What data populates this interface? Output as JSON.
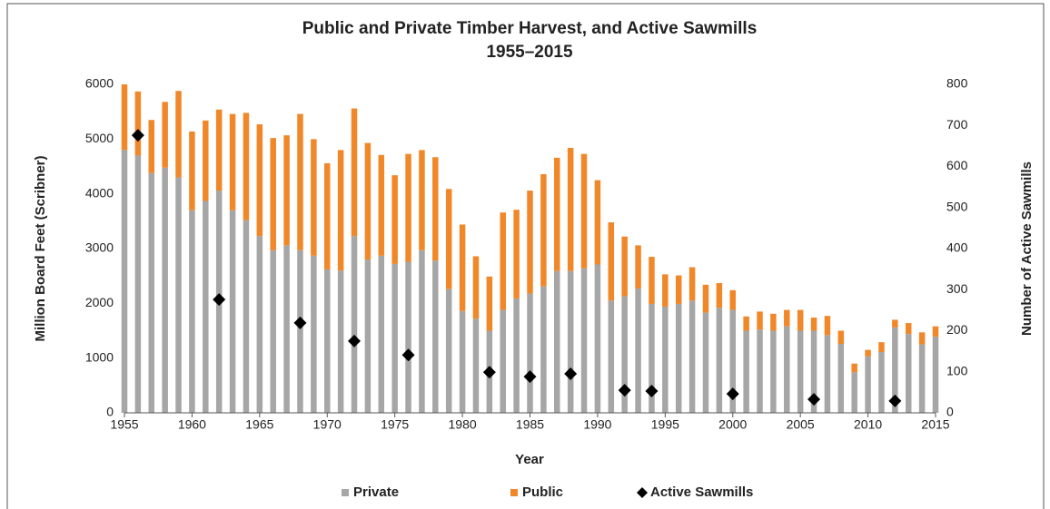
{
  "chart_data": {
    "type": "bar",
    "stacked": true,
    "title": "Public and Private Timber Harvest, and Active Sawmills",
    "subtitle": "1955–2015",
    "x_label": "Year",
    "y_label": "Million Board Feet (Scribner)",
    "y2_label": "Number of Active Sawmills",
    "x": [
      1955,
      1956,
      1957,
      1958,
      1959,
      1960,
      1961,
      1962,
      1963,
      1964,
      1965,
      1966,
      1967,
      1968,
      1969,
      1970,
      1971,
      1972,
      1973,
      1974,
      1975,
      1976,
      1977,
      1978,
      1979,
      1980,
      1981,
      1982,
      1983,
      1984,
      1985,
      1986,
      1987,
      1988,
      1989,
      1990,
      1991,
      1992,
      1993,
      1994,
      1995,
      1996,
      1997,
      1998,
      1999,
      2000,
      2001,
      2002,
      2003,
      2004,
      2005,
      2006,
      2007,
      2008,
      2009,
      2010,
      2011,
      2012,
      2013,
      2014,
      2015
    ],
    "series": [
      {
        "name": "Private",
        "type": "bar",
        "color": "#a6a6a6",
        "values": [
          4800,
          4700,
          4380,
          4480,
          4300,
          3700,
          3870,
          4060,
          3700,
          3520,
          3230,
          2970,
          3060,
          2970,
          2870,
          2620,
          2600,
          3230,
          2800,
          2870,
          2720,
          2760,
          2970,
          2780,
          2260,
          1860,
          1720,
          1500,
          1880,
          2090,
          2180,
          2310,
          2590,
          2590,
          2640,
          2710,
          2050,
          2130,
          2270,
          1990,
          1940,
          1990,
          2050,
          1830,
          1920,
          1880,
          1500,
          1520,
          1500,
          1580,
          1500,
          1500,
          1420,
          1260,
          740,
          1030,
          1110,
          1560,
          1440,
          1250,
          1390
        ]
      },
      {
        "name": "Public",
        "type": "bar",
        "color": "#f0882a",
        "values": [
          1200,
          1170,
          970,
          1200,
          1580,
          1440,
          1470,
          1480,
          1760,
          1960,
          2040,
          2050,
          2010,
          2490,
          2130,
          1940,
          2200,
          2330,
          2130,
          1840,
          1620,
          1970,
          1830,
          1890,
          1830,
          1580,
          1140,
          990,
          1780,
          1620,
          1880,
          2050,
          2070,
          2250,
          2090,
          1540,
          1430,
          1090,
          790,
          860,
          590,
          520,
          610,
          510,
          450,
          360,
          260,
          330,
          310,
          300,
          380,
          240,
          350,
          240,
          160,
          120,
          180,
          140,
          200,
          220,
          190
        ]
      },
      {
        "name": "Active Sawmills",
        "type": "scatter",
        "axis": "y2",
        "color": "#000000",
        "x": [
          1956,
          1962,
          1968,
          1972,
          1976,
          1982,
          1985,
          1988,
          1992,
          1994,
          2000,
          2006,
          2012
        ],
        "values": [
          676,
          276,
          219,
          175,
          141,
          99,
          88,
          95,
          55,
          53,
          46,
          33,
          29
        ]
      }
    ],
    "xlim": [
      1955,
      2015
    ],
    "xticks": [
      1955,
      1960,
      1965,
      1970,
      1975,
      1980,
      1985,
      1990,
      1995,
      2000,
      2005,
      2010,
      2015
    ],
    "ylim": [
      0,
      6000
    ],
    "yticks": [
      0,
      1000,
      2000,
      3000,
      4000,
      5000,
      6000
    ],
    "y2lim": [
      0,
      800
    ],
    "y2ticks": [
      0,
      100,
      200,
      300,
      400,
      500,
      600,
      700,
      800
    ],
    "grid": false,
    "legend": "bottom"
  }
}
